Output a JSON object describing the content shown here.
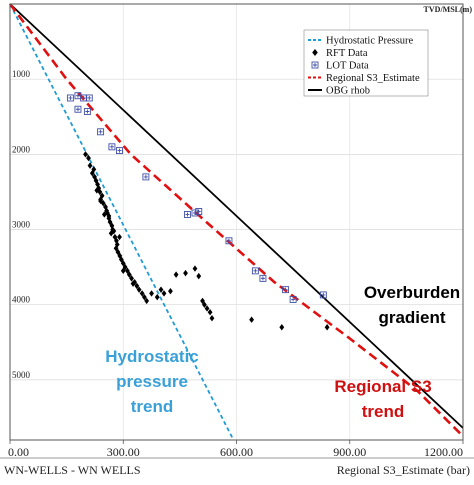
{
  "chart_data": {
    "type": "scatter",
    "depth_axis_label": "TVD/MSL(m)",
    "xlim": [
      0,
      1200
    ],
    "ylim": [
      0,
      5800
    ],
    "x_ticks": [
      "0.00",
      "300.00",
      "600.00",
      "900.00",
      "1200.00"
    ],
    "y_ticks": [
      "1000",
      "2000",
      "3000",
      "4000",
      "5000"
    ],
    "x_tick_values": [
      0,
      300,
      600,
      900,
      1200
    ],
    "y_tick_values": [
      1000,
      2000,
      3000,
      4000,
      5000
    ],
    "footer_left": "WN-WELLS - WN WELLS",
    "footer_right": "Regional S3_Estimate (bar)",
    "legend": [
      {
        "label": "Hydrostatic Pressure",
        "color": "#1f9bd6",
        "marker": "dash-line"
      },
      {
        "label": "RFT Data",
        "color": "#000000",
        "marker": "diamond"
      },
      {
        "label": "LOT Data",
        "color": "#3f4fa8",
        "marker": "boxed-plus"
      },
      {
        "label": "Regional S3_Estimate",
        "color": "#e01010",
        "marker": "dash-line"
      },
      {
        "label": "OBG rhob",
        "color": "#000000",
        "marker": "solid-line"
      }
    ],
    "series": [
      {
        "name": "Hydrostatic Pressure",
        "type": "line",
        "style": "dashed",
        "color": "#1f9bd6",
        "points": [
          [
            0,
            0
          ],
          [
            592,
            5800
          ]
        ]
      },
      {
        "name": "OBG rhob",
        "type": "line",
        "style": "solid",
        "color": "#000000",
        "points": [
          [
            0,
            0
          ],
          [
            1200,
            5640
          ]
        ]
      },
      {
        "name": "Regional S3_Estimate",
        "type": "line",
        "style": "dashed",
        "color": "#e01010",
        "points": [
          [
            0,
            0
          ],
          [
            150,
            1000
          ],
          [
            320,
            2000
          ],
          [
            520,
            2900
          ],
          [
            700,
            3700
          ],
          [
            900,
            4450
          ],
          [
            1080,
            5150
          ],
          [
            1200,
            5750
          ]
        ]
      },
      {
        "name": "RFT Data",
        "type": "scatter",
        "color": "#000000",
        "points": [
          [
            200,
            2000
          ],
          [
            208,
            2050
          ],
          [
            212,
            2150
          ],
          [
            222,
            2200
          ],
          [
            218,
            2250
          ],
          [
            224,
            2300
          ],
          [
            228,
            2350
          ],
          [
            232,
            2400
          ],
          [
            235,
            2450
          ],
          [
            230,
            2480
          ],
          [
            238,
            2500
          ],
          [
            244,
            2550
          ],
          [
            240,
            2600
          ],
          [
            247,
            2650
          ],
          [
            253,
            2700
          ],
          [
            256,
            2750
          ],
          [
            250,
            2800
          ],
          [
            262,
            2850
          ],
          [
            265,
            2900
          ],
          [
            270,
            2950
          ],
          [
            272,
            3000
          ],
          [
            268,
            3050
          ],
          [
            278,
            3100
          ],
          [
            282,
            3150
          ],
          [
            284,
            3200
          ],
          [
            281,
            3250
          ],
          [
            286,
            3300
          ],
          [
            291,
            3350
          ],
          [
            295,
            3400
          ],
          [
            300,
            3450
          ],
          [
            305,
            3500
          ],
          [
            311,
            3550
          ],
          [
            316,
            3600
          ],
          [
            322,
            3650
          ],
          [
            330,
            3700
          ],
          [
            336,
            3750
          ],
          [
            342,
            3800
          ],
          [
            350,
            3850
          ],
          [
            356,
            3900
          ],
          [
            362,
            3950
          ],
          [
            375,
            3850
          ],
          [
            390,
            3900
          ],
          [
            400,
            3800
          ],
          [
            408,
            3850
          ],
          [
            425,
            3820
          ],
          [
            440,
            3600
          ],
          [
            465,
            3580
          ],
          [
            490,
            3520
          ],
          [
            500,
            3620
          ],
          [
            510,
            3950
          ],
          [
            515,
            4000
          ],
          [
            522,
            4050
          ],
          [
            530,
            4100
          ],
          [
            535,
            4180
          ],
          [
            640,
            4200
          ],
          [
            720,
            4300
          ],
          [
            840,
            4300
          ],
          [
            240,
            2620
          ],
          [
            258,
            2780
          ],
          [
            262,
            2820
          ],
          [
            275,
            3020
          ],
          [
            290,
            3100
          ],
          [
            300,
            3550
          ],
          [
            326,
            3720
          ]
        ]
      },
      {
        "name": "LOT Data",
        "type": "scatter",
        "color": "#3f4fa8",
        "points": [
          [
            160,
            1250
          ],
          [
            180,
            1220
          ],
          [
            195,
            1250
          ],
          [
            210,
            1250
          ],
          [
            180,
            1400
          ],
          [
            205,
            1430
          ],
          [
            240,
            1700
          ],
          [
            270,
            1900
          ],
          [
            290,
            1950
          ],
          [
            360,
            2300
          ],
          [
            470,
            2800
          ],
          [
            490,
            2780
          ],
          [
            500,
            2760
          ],
          [
            580,
            3150
          ],
          [
            650,
            3550
          ],
          [
            670,
            3650
          ],
          [
            730,
            3800
          ],
          [
            750,
            3930
          ],
          [
            830,
            3870
          ]
        ]
      }
    ]
  },
  "annotations": {
    "overburden": [
      "Overburden",
      "gradient"
    ],
    "regional": [
      "Regional S3",
      "trend"
    ],
    "hydrostatic": [
      "Hydrostatic",
      "pressure",
      "trend"
    ]
  },
  "colors": {
    "hydrostatic": "#1f9bd6",
    "regional": "#e01010",
    "obg": "#000000",
    "rft": "#000000",
    "lot": "#3f4fa8",
    "hydro_text": "#3aa1d8",
    "regional_text": "#d01010"
  }
}
